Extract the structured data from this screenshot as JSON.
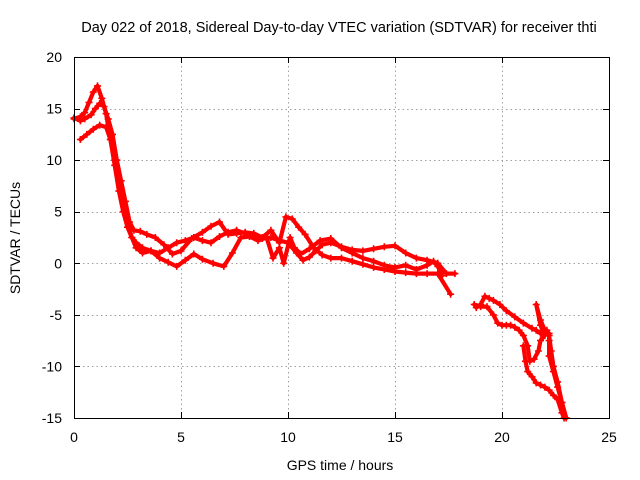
{
  "chart_data": {
    "type": "scatter",
    "title": "Day 022 of 2018, Sidereal Day-to-day VTEC variation (SDTVAR) for receiver thti",
    "xlabel": "GPS time / hours",
    "ylabel": "SDTVAR / TECUs",
    "xlim": [
      0,
      25
    ],
    "ylim": [
      -15,
      20
    ],
    "xticks": [
      "0",
      "5",
      "10",
      "15",
      "20",
      "25"
    ],
    "yticks": [
      "-15",
      "-10",
      "-5",
      "0",
      "5",
      "10",
      "15",
      "20"
    ],
    "grid": true,
    "legend": "none",
    "marker": "+",
    "color": "#ff0000",
    "series": [
      {
        "points": [
          [
            0.0,
            14.0
          ],
          [
            0.3,
            14.2
          ],
          [
            0.5,
            14.6
          ],
          [
            0.7,
            15.6
          ],
          [
            0.9,
            16.6
          ],
          [
            1.1,
            17.2
          ],
          [
            1.3,
            16.0
          ],
          [
            1.5,
            14.5
          ],
          [
            1.7,
            12.0
          ],
          [
            1.9,
            9.5
          ],
          [
            2.1,
            7.0
          ],
          [
            2.3,
            5.0
          ],
          [
            2.5,
            3.5
          ],
          [
            2.7,
            2.5
          ],
          [
            2.9,
            2.0
          ],
          [
            3.2,
            1.5
          ],
          [
            3.6,
            1.2
          ],
          [
            4.0,
            1.0
          ],
          [
            4.4,
            1.5
          ],
          [
            4.8,
            2.0
          ],
          [
            5.2,
            2.2
          ],
          [
            5.6,
            2.5
          ],
          [
            6.0,
            2.2
          ],
          [
            6.4,
            2.0
          ],
          [
            6.8,
            2.6
          ],
          [
            7.2,
            3.0
          ],
          [
            7.6,
            3.2
          ],
          [
            8.0,
            2.9
          ],
          [
            8.4,
            2.6
          ],
          [
            8.8,
            2.4
          ],
          [
            9.2,
            2.5
          ],
          [
            9.6,
            2.2
          ],
          [
            10.0,
            2.0
          ],
          [
            10.4,
            1.0
          ],
          [
            10.7,
            0.3
          ],
          [
            11.0,
            0.6
          ],
          [
            11.3,
            1.2
          ],
          [
            11.6,
            1.8
          ],
          [
            12.0,
            2.0
          ],
          [
            12.5,
            1.6
          ],
          [
            13.0,
            1.3
          ],
          [
            13.5,
            1.2
          ],
          [
            14.0,
            1.4
          ],
          [
            14.5,
            1.6
          ],
          [
            15.0,
            1.7
          ],
          [
            15.5,
            1.0
          ],
          [
            16.0,
            0.5
          ],
          [
            16.5,
            0.3
          ],
          [
            17.0,
            0.0
          ],
          [
            17.4,
            -1.0
          ],
          [
            17.8,
            -1.0
          ]
        ]
      },
      {
        "points": [
          [
            0.0,
            14.1
          ],
          [
            0.3,
            13.8
          ],
          [
            0.5,
            14.0
          ],
          [
            0.8,
            14.4
          ],
          [
            1.0,
            15.0
          ],
          [
            1.2,
            15.5
          ],
          [
            1.4,
            15.2
          ],
          [
            1.6,
            14.0
          ],
          [
            1.8,
            12.5
          ],
          [
            2.0,
            10.0
          ],
          [
            2.2,
            8.0
          ],
          [
            2.4,
            6.0
          ],
          [
            2.6,
            4.0
          ],
          [
            2.8,
            3.2
          ],
          [
            3.1,
            3.1
          ],
          [
            3.4,
            2.8
          ],
          [
            3.8,
            2.5
          ],
          [
            4.2,
            1.8
          ],
          [
            4.6,
            0.9
          ],
          [
            5.0,
            1.2
          ],
          [
            5.5,
            2.4
          ],
          [
            6.0,
            3.0
          ],
          [
            6.4,
            3.6
          ],
          [
            6.8,
            4.0
          ],
          [
            7.2,
            2.8
          ],
          [
            7.6,
            2.9
          ],
          [
            8.0,
            3.0
          ],
          [
            8.4,
            2.9
          ],
          [
            8.8,
            2.5
          ],
          [
            9.2,
            3.2
          ],
          [
            9.6,
            2.0
          ],
          [
            9.9,
            4.5
          ],
          [
            10.2,
            4.3
          ],
          [
            10.5,
            3.5
          ],
          [
            10.8,
            2.8
          ],
          [
            11.2,
            1.5
          ],
          [
            11.6,
            0.8
          ],
          [
            12.0,
            0.5
          ],
          [
            12.5,
            0.5
          ],
          [
            13.0,
            0.2
          ],
          [
            13.5,
            -0.1
          ],
          [
            14.0,
            -0.4
          ],
          [
            14.5,
            -0.6
          ],
          [
            15.0,
            -0.8
          ],
          [
            15.5,
            -0.9
          ],
          [
            16.0,
            -1.0
          ],
          [
            16.5,
            -1.0
          ],
          [
            17.0,
            -1.0
          ],
          [
            17.6,
            -3.0
          ]
        ]
      },
      {
        "points": [
          [
            0.3,
            12.0
          ],
          [
            0.6,
            12.5
          ],
          [
            0.9,
            13.0
          ],
          [
            1.2,
            13.4
          ],
          [
            1.5,
            13.2
          ],
          [
            1.7,
            12.0
          ],
          [
            1.9,
            10.0
          ],
          [
            2.1,
            8.0
          ],
          [
            2.3,
            6.0
          ],
          [
            2.5,
            4.0
          ],
          [
            2.7,
            2.5
          ],
          [
            2.9,
            1.5
          ],
          [
            3.2,
            1.0
          ],
          [
            3.6,
            1.2
          ],
          [
            4.0,
            0.5
          ],
          [
            4.4,
            0.1
          ],
          [
            4.8,
            -0.3
          ],
          [
            5.2,
            0.3
          ],
          [
            5.6,
            0.9
          ],
          [
            6.0,
            0.4
          ],
          [
            6.5,
            0.0
          ],
          [
            7.0,
            -0.3
          ],
          [
            7.4,
            1.0
          ],
          [
            7.8,
            2.5
          ],
          [
            8.2,
            2.6
          ],
          [
            8.6,
            2.2
          ],
          [
            9.0,
            2.5
          ],
          [
            9.3,
            0.5
          ],
          [
            9.6,
            1.5
          ],
          [
            9.8,
            0.0
          ],
          [
            10.1,
            2.5
          ],
          [
            10.3,
            1.5
          ],
          [
            10.6,
            0.9
          ],
          [
            11.0,
            1.4
          ],
          [
            11.5,
            2.2
          ],
          [
            12.0,
            2.4
          ],
          [
            12.5,
            1.5
          ],
          [
            13.0,
            1.0
          ],
          [
            13.5,
            0.5
          ],
          [
            14.0,
            0.2
          ],
          [
            14.5,
            -0.2
          ],
          [
            15.0,
            -0.4
          ],
          [
            15.5,
            -0.2
          ],
          [
            16.0,
            -0.6
          ],
          [
            16.5,
            -0.2
          ],
          [
            16.8,
            0.2
          ],
          [
            17.0,
            -0.3
          ],
          [
            17.2,
            -1.2
          ]
        ]
      },
      {
        "points": [
          [
            18.7,
            -4.0
          ],
          [
            19.0,
            -4.2
          ],
          [
            19.3,
            -4.2
          ],
          [
            19.6,
            -5.0
          ],
          [
            19.8,
            -5.8
          ],
          [
            20.0,
            -6.0
          ],
          [
            20.2,
            -6.0
          ],
          [
            20.4,
            -6.0
          ],
          [
            20.6,
            -6.2
          ],
          [
            20.8,
            -6.5
          ],
          [
            21.0,
            -7.0
          ],
          [
            21.2,
            -8.0
          ],
          [
            21.3,
            -9.5
          ],
          [
            21.5,
            -9.3
          ],
          [
            21.7,
            -8.5
          ],
          [
            21.8,
            -7.5
          ],
          [
            22.0,
            -7.0
          ],
          [
            22.1,
            -6.5
          ],
          [
            22.2,
            -7.0
          ],
          [
            22.3,
            -8.5
          ],
          [
            22.4,
            -10.0
          ],
          [
            22.6,
            -11.5
          ],
          [
            22.8,
            -13.5
          ],
          [
            23.0,
            -15.0
          ]
        ]
      },
      {
        "points": [
          [
            18.8,
            -4.3
          ],
          [
            19.0,
            -4.0
          ],
          [
            19.2,
            -3.2
          ],
          [
            19.4,
            -3.4
          ],
          [
            19.6,
            -3.6
          ],
          [
            19.9,
            -4.0
          ],
          [
            20.2,
            -4.6
          ],
          [
            20.6,
            -5.2
          ],
          [
            21.0,
            -5.8
          ],
          [
            21.4,
            -6.3
          ],
          [
            21.6,
            -6.5
          ],
          [
            21.8,
            -6.8
          ],
          [
            22.0,
            -7.0
          ],
          [
            21.8,
            -6.0
          ],
          [
            21.6,
            -4.0
          ],
          [
            21.8,
            -5.5
          ],
          [
            22.0,
            -6.5
          ],
          [
            22.2,
            -6.8
          ],
          [
            22.2,
            -7.5
          ],
          [
            22.2,
            -9.0
          ],
          [
            22.4,
            -10.5
          ],
          [
            22.6,
            -12.0
          ],
          [
            22.8,
            -13.5
          ],
          [
            23.0,
            -15.0
          ]
        ]
      },
      {
        "points": [
          [
            21.0,
            -8.0
          ],
          [
            21.1,
            -9.5
          ],
          [
            21.2,
            -10.5
          ],
          [
            21.4,
            -11.0
          ],
          [
            21.6,
            -11.6
          ],
          [
            21.8,
            -11.8
          ],
          [
            22.0,
            -12.0
          ],
          [
            22.2,
            -12.3
          ],
          [
            22.4,
            -12.8
          ],
          [
            22.6,
            -13.2
          ],
          [
            22.8,
            -14.5
          ],
          [
            22.9,
            -15.0
          ]
        ]
      }
    ]
  }
}
